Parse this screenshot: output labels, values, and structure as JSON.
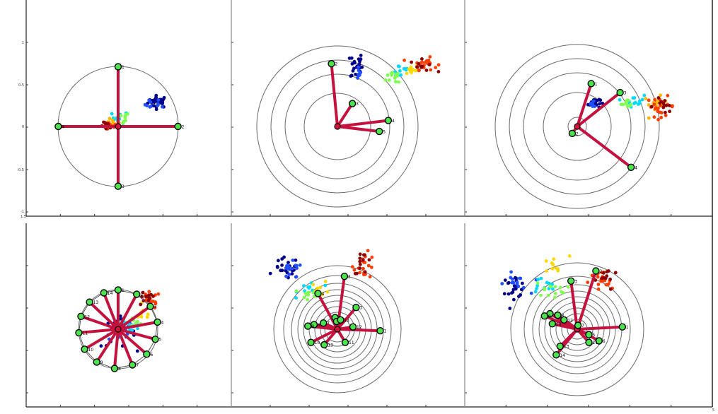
{
  "chart_data": [
    {
      "type": "scatter",
      "panel": "top-left",
      "yticks": [
        "1",
        "0.5",
        "0",
        "-0.5",
        "-1"
      ],
      "xticks": [
        "1.5"
      ],
      "nodes": [
        {
          "label": "1",
          "x": 0,
          "y": 0.6
        },
        {
          "label": "2",
          "x": 0.6,
          "y": 0
        },
        {
          "label": "3",
          "x": 0,
          "y": -0.6
        },
        {
          "label": "4",
          "x": -0.6,
          "y": 0
        }
      ],
      "clusters": [
        {
          "color": "#00008b",
          "cx": 0.4,
          "cy": 0.25,
          "sx": 0.05,
          "sy": 0.03,
          "n": 30
        },
        {
          "color": "#1f4fff",
          "cx": 0.37,
          "cy": 0.22,
          "sx": 0.05,
          "sy": 0.03,
          "n": 10
        },
        {
          "color": "#00d8ff",
          "cx": 0.02,
          "cy": 0.09,
          "sx": 0.04,
          "sy": 0.03,
          "n": 14
        },
        {
          "color": "#7fff50",
          "cx": 0.05,
          "cy": 0.08,
          "sx": 0.03,
          "sy": 0.03,
          "n": 8
        },
        {
          "color": "#ffb400",
          "cx": -0.06,
          "cy": 0.03,
          "sx": 0.04,
          "sy": 0.02,
          "n": 14
        },
        {
          "color": "#ff3c00",
          "cx": -0.09,
          "cy": 0.0,
          "sx": 0.04,
          "sy": 0.02,
          "n": 16
        },
        {
          "color": "#8b0000",
          "cx": -0.11,
          "cy": 0.0,
          "sx": 0.03,
          "sy": 0.02,
          "n": 10
        }
      ]
    },
    {
      "type": "scatter",
      "panel": "top-middle",
      "nodes": [
        {
          "label": "2",
          "x": -0.06,
          "y": 0.63
        },
        {
          "label": "3",
          "x": 0.15,
          "y": 0.23
        },
        {
          "label": "4",
          "x": 0.51,
          "y": 0.06
        },
        {
          "label": "5",
          "x": 0.42,
          "y": -0.05
        }
      ],
      "clusters": [
        {
          "color": "#00008b",
          "cx": 0.19,
          "cy": 0.61,
          "sx": 0.03,
          "sy": 0.07,
          "n": 26
        },
        {
          "color": "#1f4fff",
          "cx": 0.2,
          "cy": 0.57,
          "sx": 0.03,
          "sy": 0.05,
          "n": 8
        },
        {
          "color": "#00d8ff",
          "cx": 0.63,
          "cy": 0.56,
          "sx": 0.05,
          "sy": 0.04,
          "n": 12
        },
        {
          "color": "#7fff50",
          "cx": 0.59,
          "cy": 0.5,
          "sx": 0.05,
          "sy": 0.04,
          "n": 14
        },
        {
          "color": "#ffd800",
          "cx": 0.74,
          "cy": 0.57,
          "sx": 0.04,
          "sy": 0.03,
          "n": 12
        },
        {
          "color": "#ff4000",
          "cx": 0.88,
          "cy": 0.63,
          "sx": 0.06,
          "sy": 0.03,
          "n": 22
        },
        {
          "color": "#8b0000",
          "cx": 0.85,
          "cy": 0.61,
          "sx": 0.06,
          "sy": 0.03,
          "n": 10
        }
      ]
    },
    {
      "type": "scatter",
      "panel": "top-right",
      "nodes": [
        {
          "label": "1",
          "x": 0.14,
          "y": 0.43
        },
        {
          "label": "2",
          "x": -0.05,
          "y": -0.07
        },
        {
          "label": "3",
          "x": 0.43,
          "y": 0.34
        },
        {
          "label": "4",
          "x": 0.54,
          "y": -0.41
        }
      ],
      "clusters": [
        {
          "color": "#00008b",
          "cx": 0.17,
          "cy": 0.24,
          "sx": 0.03,
          "sy": 0.03,
          "n": 22
        },
        {
          "color": "#1f4fff",
          "cx": 0.16,
          "cy": 0.22,
          "sx": 0.03,
          "sy": 0.02,
          "n": 6
        },
        {
          "color": "#00d8ff",
          "cx": 0.57,
          "cy": 0.26,
          "sx": 0.05,
          "sy": 0.03,
          "n": 16
        },
        {
          "color": "#7fff50",
          "cx": 0.52,
          "cy": 0.23,
          "sx": 0.04,
          "sy": 0.02,
          "n": 10
        },
        {
          "color": "#ffb400",
          "cx": 0.78,
          "cy": 0.22,
          "sx": 0.06,
          "sy": 0.04,
          "n": 14
        },
        {
          "color": "#ff3c00",
          "cx": 0.84,
          "cy": 0.2,
          "sx": 0.07,
          "sy": 0.05,
          "n": 22
        },
        {
          "color": "#8b0000",
          "cx": 0.86,
          "cy": 0.21,
          "sx": 0.07,
          "sy": 0.04,
          "n": 12
        }
      ]
    },
    {
      "type": "scatter",
      "panel": "bottom-left",
      "yticks": [],
      "nodes": [
        {
          "label": "1",
          "x": 0.0,
          "y": 0.55
        },
        {
          "label": "2",
          "x": 0.26,
          "y": 0.49
        },
        {
          "label": "3",
          "x": 0.45,
          "y": 0.32
        },
        {
          "label": "4",
          "x": 0.55,
          "y": 0.1
        },
        {
          "label": "5",
          "x": 0.52,
          "y": -0.14
        },
        {
          "label": "6",
          "x": 0.4,
          "y": -0.35
        },
        {
          "label": "7",
          "x": 0.2,
          "y": -0.5
        },
        {
          "label": "8",
          "x": -0.05,
          "y": -0.55
        },
        {
          "label": "9",
          "x": -0.3,
          "y": -0.46
        },
        {
          "label": "10",
          "x": -0.47,
          "y": -0.28
        },
        {
          "label": "11",
          "x": -0.55,
          "y": -0.05
        },
        {
          "label": "12",
          "x": -0.52,
          "y": 0.18
        },
        {
          "label": "13",
          "x": -0.4,
          "y": 0.38
        },
        {
          "label": "14",
          "x": -0.2,
          "y": 0.51
        }
      ],
      "clusters": [
        {
          "color": "#00008b",
          "cx": 0.0,
          "cy": -0.05,
          "sx": 0.12,
          "sy": 0.1,
          "n": 22
        },
        {
          "color": "#1f4fff",
          "cx": 0.05,
          "cy": -0.02,
          "sx": 0.12,
          "sy": 0.1,
          "n": 16
        },
        {
          "color": "#00d8ff",
          "cx": 0.2,
          "cy": 0.05,
          "sx": 0.08,
          "sy": 0.06,
          "n": 12
        },
        {
          "color": "#7fff50",
          "cx": 0.25,
          "cy": 0.1,
          "sx": 0.06,
          "sy": 0.05,
          "n": 8
        },
        {
          "color": "#ffd800",
          "cx": 0.35,
          "cy": 0.2,
          "sx": 0.06,
          "sy": 0.05,
          "n": 8
        },
        {
          "color": "#ff3c00",
          "cx": 0.45,
          "cy": 0.4,
          "sx": 0.07,
          "sy": 0.06,
          "n": 18
        },
        {
          "color": "#8b0000",
          "cx": 0.38,
          "cy": 0.42,
          "sx": 0.07,
          "sy": 0.05,
          "n": 12
        }
      ]
    },
    {
      "type": "scatter",
      "panel": "bottom-middle",
      "nodes": [
        {
          "label": "1",
          "x": 0.55,
          "y": -0.02
        },
        {
          "label": "2",
          "x": 0.09,
          "y": 0.68
        },
        {
          "label": "3",
          "x": 0.24,
          "y": 0.28
        },
        {
          "label": "4",
          "x": -0.25,
          "y": 0.46
        },
        {
          "label": "5",
          "x": -0.03,
          "y": 0.15
        },
        {
          "label": "6",
          "x": -0.01,
          "y": 0.1
        },
        {
          "label": "7",
          "x": -0.18,
          "y": 0.08
        },
        {
          "label": "8",
          "x": -0.3,
          "y": 0.06
        },
        {
          "label": "9",
          "x": -0.38,
          "y": 0.04
        },
        {
          "label": "10",
          "x": -0.34,
          "y": -0.17
        },
        {
          "label": "11",
          "x": 0.1,
          "y": -0.17
        },
        {
          "label": "12",
          "x": 0.2,
          "y": 0.03
        },
        {
          "label": "13",
          "x": -0.17,
          "y": -0.2
        },
        {
          "label": "14",
          "x": 0.04,
          "y": 0.12
        }
      ],
      "clusters": [
        {
          "color": "#00008b",
          "cx": -0.65,
          "cy": 0.78,
          "sx": 0.08,
          "sy": 0.07,
          "n": 24
        },
        {
          "color": "#1f4fff",
          "cx": -0.6,
          "cy": 0.74,
          "sx": 0.08,
          "sy": 0.06,
          "n": 14
        },
        {
          "color": "#00d8ff",
          "cx": -0.35,
          "cy": 0.53,
          "sx": 0.08,
          "sy": 0.05,
          "n": 10
        },
        {
          "color": "#7fff50",
          "cx": -0.3,
          "cy": 0.45,
          "sx": 0.08,
          "sy": 0.04,
          "n": 14
        },
        {
          "color": "#ffd800",
          "cx": -0.22,
          "cy": 0.52,
          "sx": 0.06,
          "sy": 0.05,
          "n": 8
        },
        {
          "color": "#ff3c00",
          "cx": 0.35,
          "cy": 0.82,
          "sx": 0.07,
          "sy": 0.08,
          "n": 20
        },
        {
          "color": "#8b0000",
          "cx": 0.33,
          "cy": 0.86,
          "sx": 0.06,
          "sy": 0.07,
          "n": 12
        }
      ]
    },
    {
      "type": "scatter",
      "panel": "bottom-right",
      "xticks_right": [
        "5"
      ],
      "nodes": [
        {
          "label": "1",
          "x": 0.58,
          "y": 0.03
        },
        {
          "label": "2",
          "x": 0.24,
          "y": 0.75
        },
        {
          "label": "3",
          "x": -0.08,
          "y": 0.62
        },
        {
          "label": "4",
          "x": -0.35,
          "y": 0.2
        },
        {
          "label": "5",
          "x": 0.15,
          "y": -0.07
        },
        {
          "label": "6",
          "x": 0.28,
          "y": -0.15
        },
        {
          "label": "7",
          "x": 0.01,
          "y": 0.05
        },
        {
          "label": "8",
          "x": -0.25,
          "y": 0.18
        },
        {
          "label": "9",
          "x": -0.42,
          "y": 0.17
        },
        {
          "label": "10",
          "x": -0.32,
          "y": 0.07
        },
        {
          "label": "11",
          "x": 0.15,
          "y": -0.17
        },
        {
          "label": "12",
          "x": -0.17,
          "y": 0.12
        },
        {
          "label": "13",
          "x": -0.22,
          "y": -0.22
        },
        {
          "label": "14",
          "x": -0.27,
          "y": -0.33
        }
      ],
      "clusters": [
        {
          "color": "#00008b",
          "cx": -0.82,
          "cy": 0.55,
          "sx": 0.08,
          "sy": 0.07,
          "n": 22
        },
        {
          "color": "#1f4fff",
          "cx": -0.78,
          "cy": 0.58,
          "sx": 0.08,
          "sy": 0.07,
          "n": 14
        },
        {
          "color": "#00d8ff",
          "cx": -0.45,
          "cy": 0.55,
          "sx": 0.1,
          "sy": 0.06,
          "n": 12
        },
        {
          "color": "#7fff50",
          "cx": -0.35,
          "cy": 0.52,
          "sx": 0.1,
          "sy": 0.05,
          "n": 14
        },
        {
          "color": "#ffd800",
          "cx": -0.3,
          "cy": 0.82,
          "sx": 0.1,
          "sy": 0.06,
          "n": 10
        },
        {
          "color": "#ff3c00",
          "cx": 0.3,
          "cy": 0.6,
          "sx": 0.08,
          "sy": 0.08,
          "n": 20
        },
        {
          "color": "#8b0000",
          "cx": 0.38,
          "cy": 0.66,
          "sx": 0.07,
          "sy": 0.08,
          "n": 12
        }
      ]
    }
  ]
}
